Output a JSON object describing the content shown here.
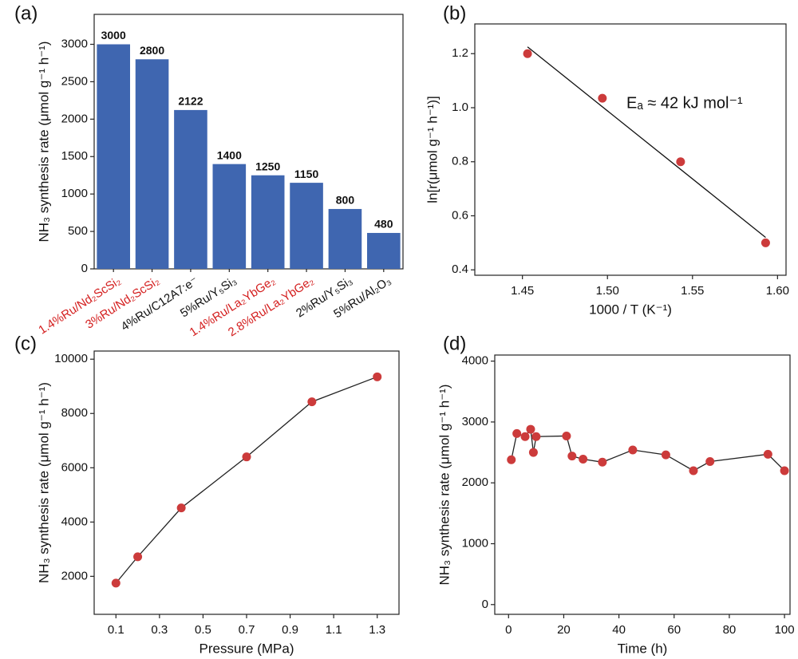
{
  "chart_data": [
    {
      "type": "bar",
      "panel_label": "(a)",
      "ylabel": "NH₃ synthesis rate (μmol g⁻¹ h⁻¹)",
      "categories": [
        "1.4%Ru/Nd₂ScSi₂",
        "3%Ru/Nd₂ScSi₂",
        "4%Ru/C12A7:e⁻",
        "5%Ru/Y₅Si₃",
        "1.4%Ru/La₂YbGe₂",
        "2.8%Ru/La₂YbGe₂",
        "2%Ru/Y₅Si₃",
        "5%Ru/Al₂O₃"
      ],
      "label_colors": [
        "#d42020",
        "#d42020",
        "#111111",
        "#111111",
        "#d42020",
        "#d42020",
        "#111111",
        "#111111"
      ],
      "values": [
        3000,
        2800,
        2122,
        1400,
        1250,
        1150,
        800,
        480
      ],
      "color": "#3f66b0",
      "ylim": [
        0,
        3400
      ],
      "yticks": [
        0,
        500,
        1000,
        1500,
        2000,
        2500,
        3000
      ]
    },
    {
      "type": "scatter",
      "panel_label": "(b)",
      "xlabel": "1000 / T (K⁻¹)",
      "ylabel": "ln[r(μmol g⁻¹ h⁻¹)]",
      "annotation": "Eₐ ≈ 42 kJ mol⁻¹",
      "series": [
        {
          "x": [
            1.453,
            1.497,
            1.543,
            1.593
          ],
          "values": [
            1.2,
            1.035,
            0.8,
            0.5
          ],
          "color": "#cc3b3b",
          "markers": true,
          "line": false
        },
        {
          "x": [
            1.453,
            1.593
          ],
          "values": [
            1.225,
            0.52
          ],
          "color": "#111111",
          "markers": false,
          "line": true
        }
      ],
      "xlim": [
        1.422,
        1.605
      ],
      "xticks": [
        1.45,
        {
          "value": 1.5,
          "label": "1.50"
        },
        1.55,
        {
          "value": 1.6,
          "label": "1.60"
        }
      ],
      "ylim": [
        0.38,
        1.31
      ],
      "yticks": [
        0.4,
        0.6,
        0.8,
        {
          "value": 1,
          "label": "1.0"
        },
        1.2
      ]
    },
    {
      "type": "line",
      "panel_label": "(c)",
      "xlabel": "Pressure (MPa)",
      "ylabel": "NH₃ synthesis rate (μmol g⁻¹ h⁻¹)",
      "series": [
        {
          "x": [
            0.1,
            0.2,
            0.4,
            0.7,
            1.0,
            1.3
          ],
          "values": [
            1750,
            2720,
            4520,
            6400,
            8430,
            9350
          ],
          "color": "#cc3b3b",
          "markers": true,
          "line": true
        }
      ],
      "xlim": [
        0,
        1.4
      ],
      "xticks": [
        0.1,
        0.3,
        0.5,
        0.7,
        0.9,
        1.1,
        1.3
      ],
      "ylim": [
        600,
        10300
      ],
      "yticks": [
        2000,
        4000,
        6000,
        8000,
        10000
      ]
    },
    {
      "type": "line",
      "panel_label": "(d)",
      "xlabel": "Time (h)",
      "ylabel": "NH₃ synthesis rate (μmol g⁻¹ h⁻¹)",
      "series": [
        {
          "x": [
            1,
            3,
            6,
            8,
            9,
            10,
            21,
            23,
            27,
            34,
            45,
            57,
            67,
            73,
            94,
            100
          ],
          "values": [
            2380,
            2810,
            2760,
            2880,
            2500,
            2760,
            2770,
            2440,
            2390,
            2340,
            2540,
            2460,
            2200,
            2350,
            2470,
            2200
          ],
          "color": "#cc3b3b",
          "markers": true,
          "line": true
        }
      ],
      "xlim": [
        -5,
        102
      ],
      "xticks": [
        0,
        20,
        40,
        60,
        80,
        100
      ],
      "ylim": [
        -160,
        4100
      ],
      "yticks": [
        0,
        1000,
        2000,
        3000,
        4000
      ]
    }
  ]
}
